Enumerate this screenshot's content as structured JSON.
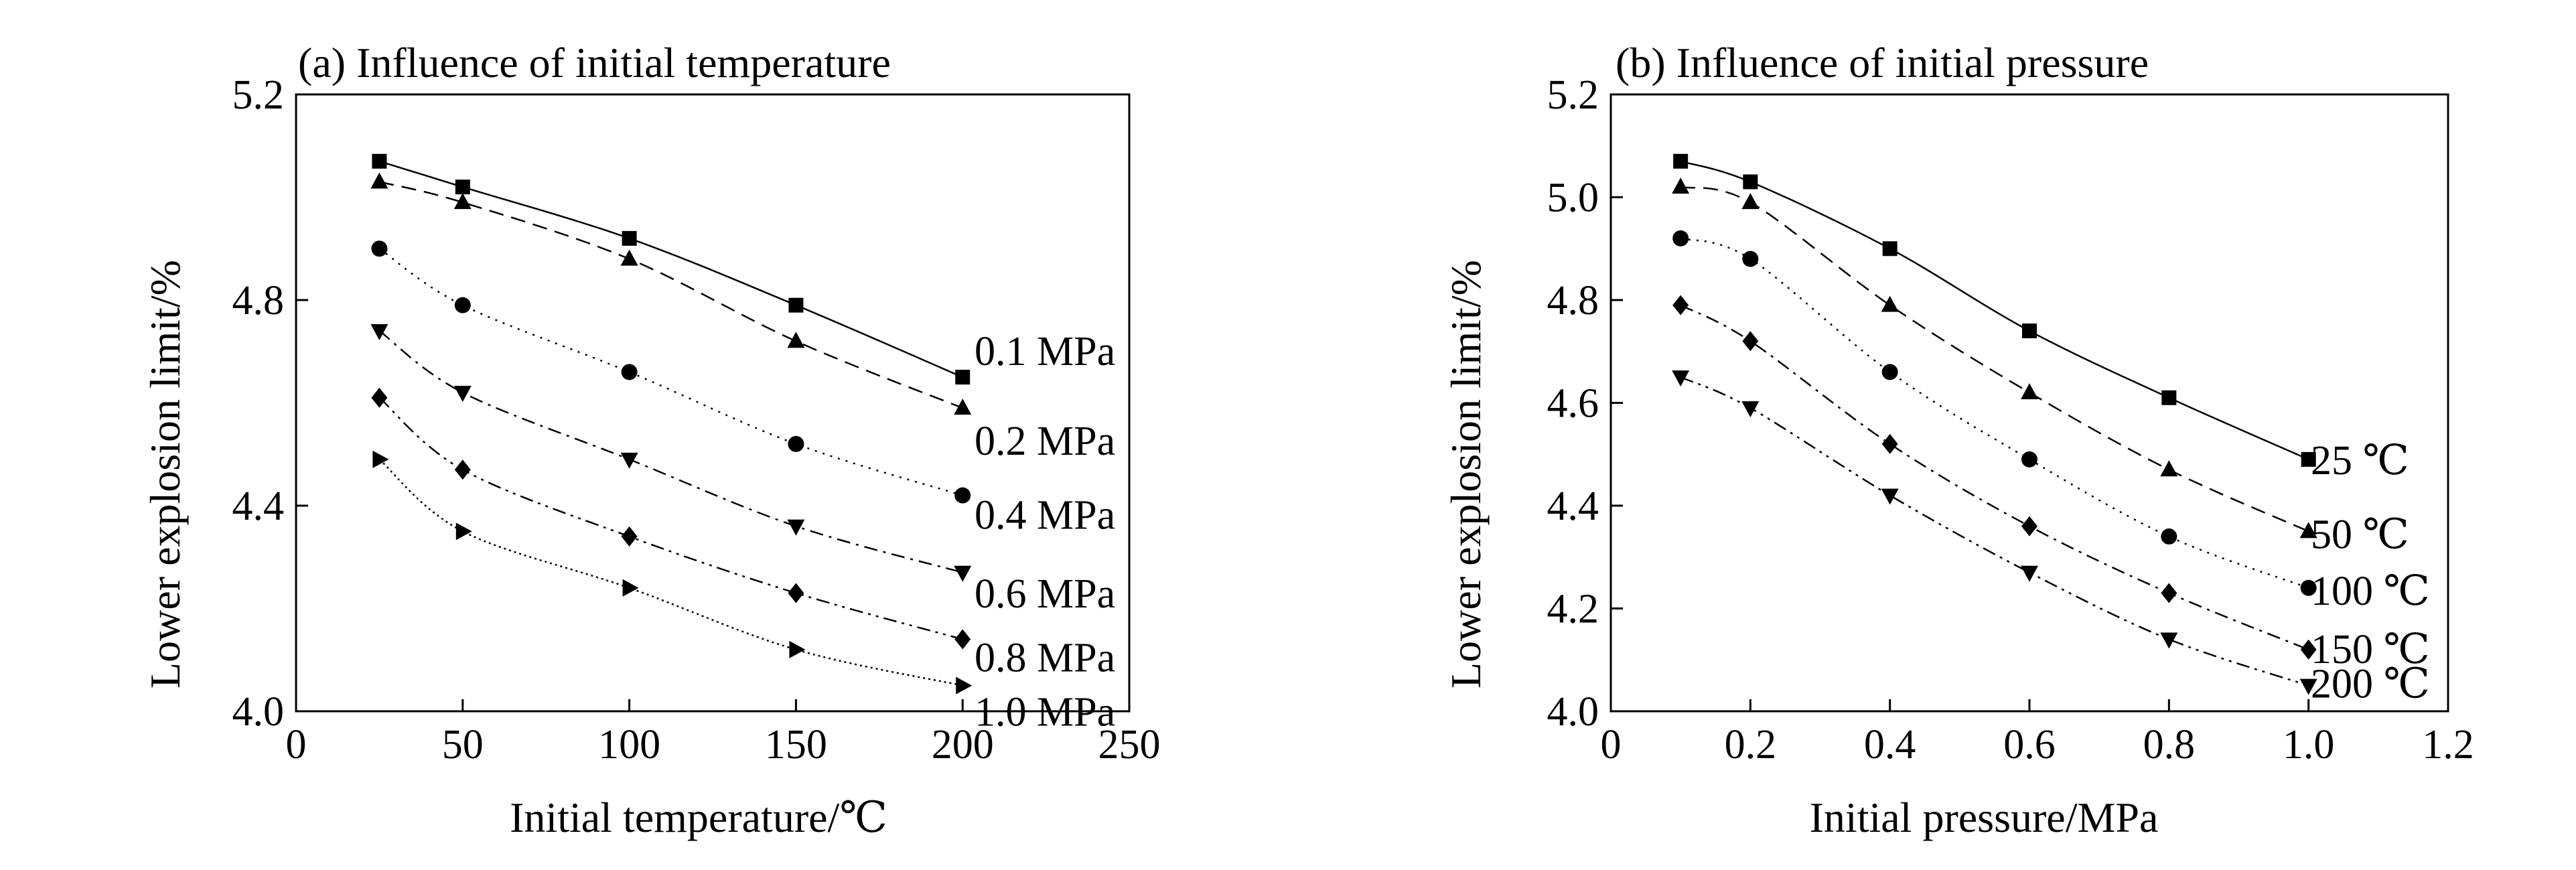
{
  "chart_data": [
    {
      "type": "line",
      "title": "(a) Influence of initial temperature",
      "xlabel": "Initial temperature/℃",
      "ylabel": "Lower explosion limit/%",
      "xlim": [
        0,
        250
      ],
      "ylim": [
        4.0,
        5.2
      ],
      "xticks": [
        "0",
        "50",
        "100",
        "150",
        "200",
        "250"
      ],
      "yticks": [
        "4.0",
        "4.4",
        "4.8",
        "5.2"
      ],
      "x": [
        25,
        50,
        100,
        150,
        200
      ],
      "grid": false,
      "series": [
        {
          "name": "0.1 MPa",
          "marker": "square",
          "dash": "solid",
          "values": [
            5.07,
            5.02,
            4.92,
            4.79,
            4.65
          ]
        },
        {
          "name": "0.2 MPa",
          "marker": "triangle-up",
          "dash": "dashed",
          "values": [
            5.03,
            4.99,
            4.88,
            4.72,
            4.59
          ]
        },
        {
          "name": "0.4 MPa",
          "marker": "circle",
          "dash": "dotted",
          "values": [
            4.9,
            4.79,
            4.66,
            4.52,
            4.42
          ]
        },
        {
          "name": "0.6 MPa",
          "marker": "triangle-down",
          "dash": "dashdot",
          "values": [
            4.74,
            4.62,
            4.49,
            4.36,
            4.27
          ]
        },
        {
          "name": "0.8 MPa",
          "marker": "diamond",
          "dash": "dashdotdot",
          "values": [
            4.61,
            4.47,
            4.34,
            4.23,
            4.14
          ]
        },
        {
          "name": "1.0 MPa",
          "marker": "triangle-right",
          "dash": "densedot",
          "values": [
            4.49,
            4.35,
            4.24,
            4.12,
            4.05
          ]
        }
      ]
    },
    {
      "type": "line",
      "title": "(b) Influence of initial pressure",
      "xlabel": "Initial pressure/MPa",
      "ylabel": "Lower explosion limit/%",
      "xlim": [
        0,
        1.2
      ],
      "ylim": [
        4.0,
        5.2
      ],
      "xticks": [
        "0",
        "0.2",
        "0.4",
        "0.6",
        "0.8",
        "1.0",
        "1.2"
      ],
      "yticks": [
        "4.0",
        "4.2",
        "4.4",
        "4.6",
        "4.8",
        "5.0",
        "5.2"
      ],
      "x": [
        0.1,
        0.2,
        0.4,
        0.6,
        0.8,
        1.0
      ],
      "grid": false,
      "series": [
        {
          "name": "25 ℃",
          "marker": "square",
          "dash": "solid",
          "values": [
            5.07,
            5.03,
            4.9,
            4.74,
            4.61,
            4.49
          ]
        },
        {
          "name": "50 ℃",
          "marker": "triangle-up",
          "dash": "dashed",
          "values": [
            5.02,
            4.99,
            4.79,
            4.62,
            4.47,
            4.35
          ]
        },
        {
          "name": "100 ℃",
          "marker": "circle",
          "dash": "dotted",
          "values": [
            4.92,
            4.88,
            4.66,
            4.49,
            4.34,
            4.24
          ]
        },
        {
          "name": "150 ℃",
          "marker": "diamond",
          "dash": "dashdot",
          "values": [
            4.79,
            4.72,
            4.52,
            4.36,
            4.23,
            4.12
          ]
        },
        {
          "name": "200 ℃",
          "marker": "triangle-down",
          "dash": "dashdotdot",
          "values": [
            4.65,
            4.59,
            4.42,
            4.27,
            4.14,
            4.05
          ]
        }
      ]
    }
  ]
}
